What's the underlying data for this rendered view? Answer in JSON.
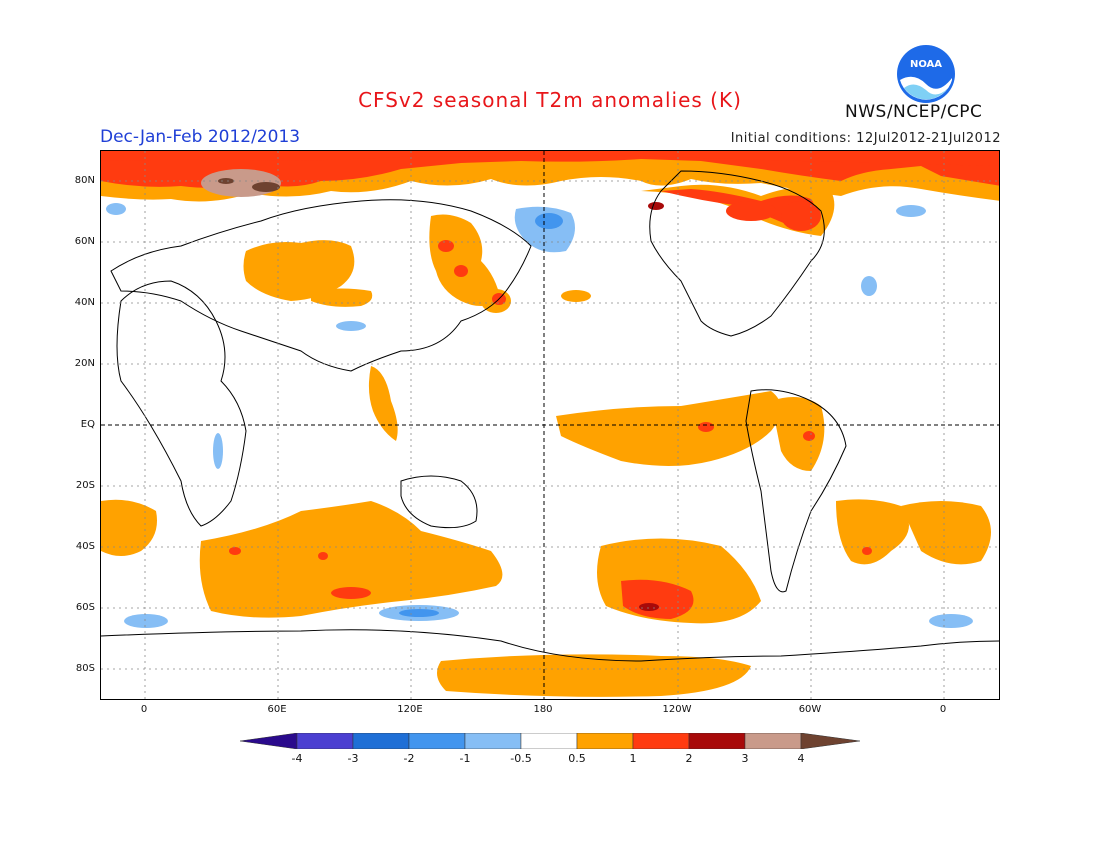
{
  "title": "CFSv2 seasonal T2m anomalies (K)",
  "season": "Dec-Jan-Feb 2012/2013",
  "initial_conditions": "Initial conditions: 12Jul2012-21Jul2012",
  "organization": "NWS/NCEP/CPC",
  "logo_text": "NOAA",
  "map": {
    "lat_labels": [
      "80N",
      "60N",
      "40N",
      "20N",
      "EQ",
      "20S",
      "40S",
      "60S",
      "80S"
    ],
    "lon_labels": [
      "0",
      "60E",
      "120E",
      "180",
      "120W",
      "60W",
      "0"
    ]
  },
  "colorbar": {
    "labels": [
      "-4",
      "-3",
      "-2",
      "-1",
      "-0.5",
      "0.5",
      "1",
      "2",
      "3",
      "4"
    ],
    "colors": [
      "#2a0a8c",
      "#4b3fd1",
      "#1f6fd6",
      "#4295ee",
      "#86bef5",
      "#ffffff",
      "#ffa200",
      "#ff3b10",
      "#a80a0a",
      "#c99a8a",
      "#6e4230"
    ]
  },
  "colors": {
    "warm_05": "#ffa200",
    "warm_1": "#ff3b10",
    "warm_2": "#a80a0a",
    "warm_3": "#c99a8a",
    "warm_4": "#6e4230",
    "cool_05": "#86bef5",
    "cool_1": "#4295ee"
  }
}
